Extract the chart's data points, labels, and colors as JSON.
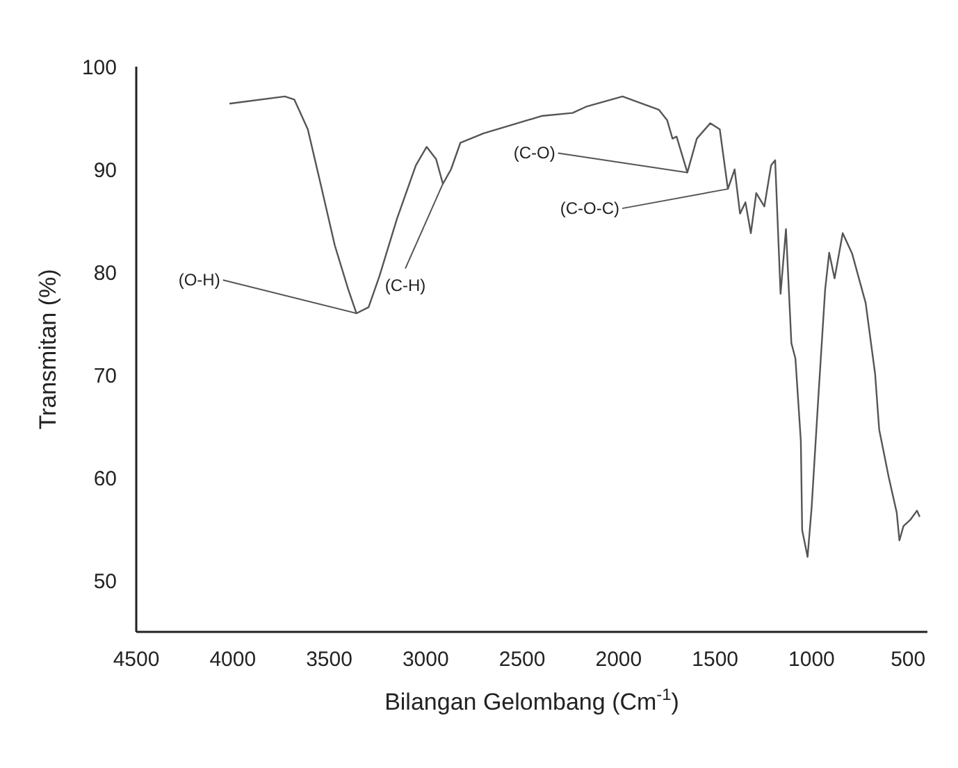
{
  "chart_data": {
    "type": "line",
    "xlabel": "Bilangan Gelombang (Cm$^{-1}$)",
    "ylabel": "Transmitan (%)",
    "xlim": [
      4500,
      400
    ],
    "xticks": [
      4500,
      4000,
      3500,
      3000,
      2500,
      2000,
      1500,
      1000,
      500
    ],
    "ylim": [
      45,
      100
    ],
    "yticks": [
      50,
      60,
      70,
      80,
      90,
      100
    ],
    "grid": false,
    "legend": false,
    "marker": "none",
    "line_style": "solid",
    "x": [
      4017,
      3730,
      3681,
      3611,
      3541,
      3471,
      3401,
      3359,
      3296,
      3240,
      3149,
      3051,
      2995,
      2946,
      2911,
      2869,
      2820,
      2701,
      2470,
      2400,
      2239,
      2169,
      1980,
      1791,
      1749,
      1721,
      1700,
      1644,
      1595,
      1525,
      1476,
      1434,
      1399,
      1371,
      1343,
      1315,
      1287,
      1245,
      1210,
      1189,
      1161,
      1133,
      1105,
      1084,
      1056,
      1049,
      1021,
      1000,
      965,
      930,
      909,
      881,
      839,
      790,
      720,
      671,
      650,
      601,
      559,
      545,
      524,
      489,
      454,
      440
    ],
    "series": [
      {
        "color": "#555555",
        "values": [
          96.4,
          97.1,
          96.8,
          93.9,
          88.3,
          82.6,
          78.3,
          76.0,
          76.6,
          79.6,
          85.2,
          90.4,
          92.2,
          91.0,
          88.6,
          90.0,
          92.6,
          93.5,
          94.8,
          95.2,
          95.5,
          96.1,
          97.1,
          95.8,
          94.8,
          93.0,
          93.2,
          89.7,
          93.0,
          94.5,
          93.9,
          88.1,
          90.0,
          85.7,
          86.8,
          83.8,
          87.7,
          86.4,
          90.4,
          90.9,
          77.9,
          84.2,
          73.1,
          71.6,
          63.6,
          54.9,
          52.3,
          57.1,
          67.9,
          78.3,
          81.9,
          79.4,
          83.8,
          81.8,
          77.0,
          70.1,
          64.7,
          60.1,
          56.6,
          53.9,
          55.3,
          55.9,
          56.8,
          56.2
        ]
      }
    ],
    "annotations": [
      {
        "text": "(O-H)",
        "x": 3359,
        "y": 76.0
      },
      {
        "text": "(C-H)",
        "x": 2911,
        "y": 88.6
      },
      {
        "text": "(C-O)",
        "x": 1644,
        "y": 89.7
      },
      {
        "text": "(C-O-C)",
        "x": 1434,
        "y": 88.1
      }
    ]
  }
}
